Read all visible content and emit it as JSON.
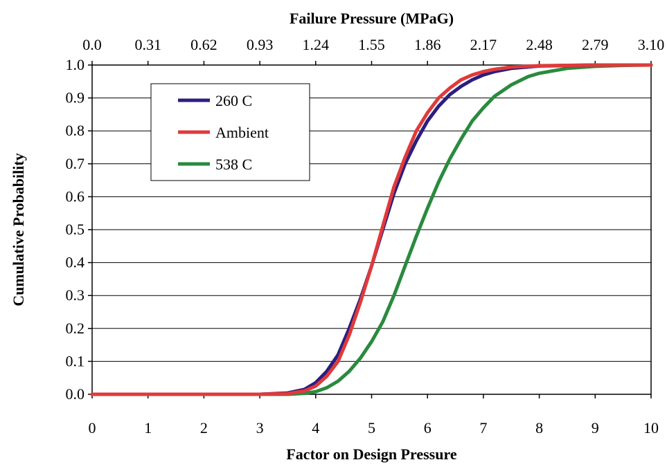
{
  "chart_data": {
    "type": "line",
    "title": "",
    "xlabel": "Factor on Design Pressure",
    "x2label": "Failure Pressure (MPaG)",
    "ylabel": "Cumulative Probability",
    "xlim": [
      0,
      10
    ],
    "ylim": [
      0,
      1
    ],
    "x_ticks": [
      "0",
      "1",
      "2",
      "3",
      "4",
      "5",
      "6",
      "7",
      "8",
      "9",
      "10"
    ],
    "x2_ticks": [
      "0.0",
      "0.31",
      "0.62",
      "0.93",
      "1.24",
      "1.55",
      "1.86",
      "2.17",
      "2.48",
      "2.79",
      "3.10"
    ],
    "y_ticks": [
      "0.0",
      "0.1",
      "0.2",
      "0.3",
      "0.4",
      "0.5",
      "0.6",
      "0.7",
      "0.8",
      "0.9",
      "1.0"
    ],
    "grid": "horizontal",
    "legend_position": "top-left",
    "series": [
      {
        "name": "260 C",
        "color": "#2b1f7f",
        "points": [
          [
            0,
            0
          ],
          [
            3,
            0
          ],
          [
            3.5,
            0.004
          ],
          [
            3.8,
            0.015
          ],
          [
            4,
            0.035
          ],
          [
            4.2,
            0.07
          ],
          [
            4.4,
            0.12
          ],
          [
            4.6,
            0.2
          ],
          [
            4.8,
            0.29
          ],
          [
            5,
            0.39
          ],
          [
            5.2,
            0.5
          ],
          [
            5.4,
            0.61
          ],
          [
            5.6,
            0.7
          ],
          [
            5.8,
            0.77
          ],
          [
            6,
            0.83
          ],
          [
            6.2,
            0.875
          ],
          [
            6.4,
            0.91
          ],
          [
            6.6,
            0.935
          ],
          [
            6.8,
            0.955
          ],
          [
            7,
            0.97
          ],
          [
            7.2,
            0.98
          ],
          [
            7.5,
            0.99
          ],
          [
            8,
            0.997
          ],
          [
            9,
            1
          ],
          [
            10,
            1
          ]
        ]
      },
      {
        "name": "Ambient",
        "color": "#e03a3a",
        "points": [
          [
            0,
            0
          ],
          [
            3,
            0
          ],
          [
            3.5,
            0.002
          ],
          [
            3.8,
            0.01
          ],
          [
            4,
            0.025
          ],
          [
            4.2,
            0.055
          ],
          [
            4.4,
            0.1
          ],
          [
            4.6,
            0.18
          ],
          [
            4.8,
            0.28
          ],
          [
            5,
            0.39
          ],
          [
            5.2,
            0.51
          ],
          [
            5.4,
            0.63
          ],
          [
            5.6,
            0.72
          ],
          [
            5.8,
            0.8
          ],
          [
            6,
            0.855
          ],
          [
            6.2,
            0.9
          ],
          [
            6.4,
            0.93
          ],
          [
            6.6,
            0.955
          ],
          [
            6.8,
            0.97
          ],
          [
            7,
            0.98
          ],
          [
            7.2,
            0.987
          ],
          [
            7.5,
            0.994
          ],
          [
            8,
            0.998
          ],
          [
            9,
            1
          ],
          [
            10,
            1
          ]
        ]
      },
      {
        "name": "538 C",
        "color": "#2a8a3e",
        "points": [
          [
            0,
            0
          ],
          [
            3.5,
            0
          ],
          [
            3.8,
            0.003
          ],
          [
            4,
            0.008
          ],
          [
            4.2,
            0.02
          ],
          [
            4.4,
            0.04
          ],
          [
            4.6,
            0.07
          ],
          [
            4.8,
            0.11
          ],
          [
            5,
            0.16
          ],
          [
            5.2,
            0.22
          ],
          [
            5.4,
            0.3
          ],
          [
            5.6,
            0.39
          ],
          [
            5.8,
            0.48
          ],
          [
            6,
            0.565
          ],
          [
            6.2,
            0.645
          ],
          [
            6.4,
            0.715
          ],
          [
            6.6,
            0.775
          ],
          [
            6.8,
            0.83
          ],
          [
            7,
            0.87
          ],
          [
            7.2,
            0.905
          ],
          [
            7.5,
            0.94
          ],
          [
            7.8,
            0.965
          ],
          [
            8,
            0.975
          ],
          [
            8.5,
            0.99
          ],
          [
            9,
            0.996
          ],
          [
            9.5,
            0.999
          ],
          [
            10,
            1
          ]
        ]
      }
    ]
  }
}
